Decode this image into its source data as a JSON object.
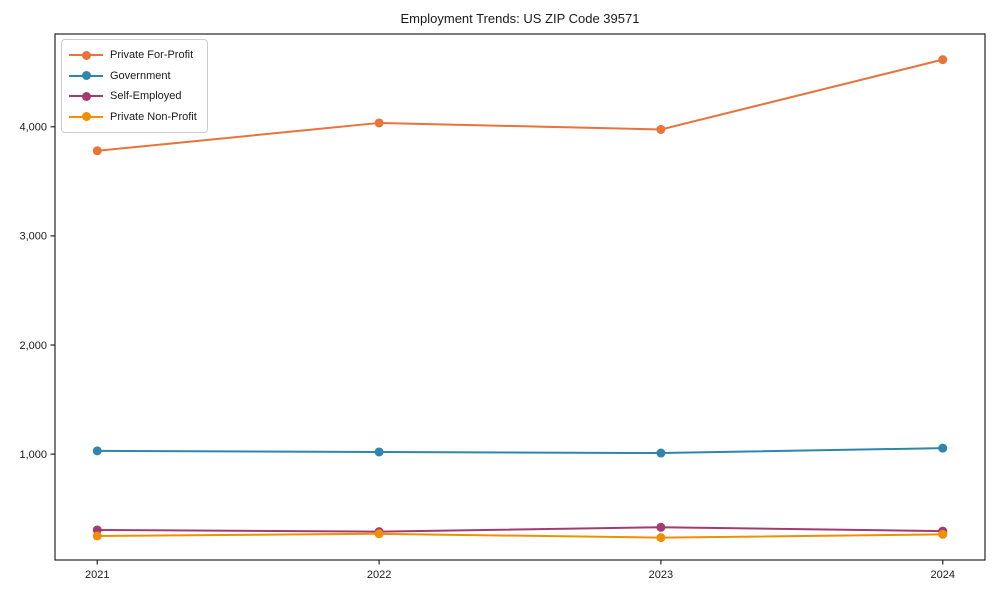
{
  "chart_data": {
    "type": "line",
    "title": "Employment Trends: US ZIP Code 39571",
    "xlabel": "",
    "ylabel": "",
    "categories": [
      2021,
      2022,
      2023,
      2024
    ],
    "series": [
      {
        "name": "Private For-Profit",
        "color": "#E8743B",
        "values": [
          3780,
          4035,
          3975,
          4615
        ]
      },
      {
        "name": "Government",
        "color": "#2E86AB",
        "values": [
          1030,
          1020,
          1010,
          1055
        ]
      },
      {
        "name": "Self-Employed",
        "color": "#A23B72",
        "values": [
          305,
          290,
          330,
          295
        ]
      },
      {
        "name": "Private Non-Profit",
        "color": "#F18F01",
        "values": [
          250,
          270,
          235,
          265
        ]
      }
    ],
    "x_ticks": [
      {
        "value": 2021,
        "label": "2021"
      },
      {
        "value": 2022,
        "label": "2022"
      },
      {
        "value": 2023,
        "label": "2023"
      },
      {
        "value": 2024,
        "label": "2024"
      }
    ],
    "y_ticks": [
      {
        "value": 1000,
        "label": "1,000"
      },
      {
        "value": 2000,
        "label": "2,000"
      },
      {
        "value": 3000,
        "label": "3,000"
      },
      {
        "value": 4000,
        "label": "4,000"
      }
    ],
    "xlim": [
      2020.85,
      2024.15
    ],
    "ylim": [
      30,
      4850
    ],
    "grid": false,
    "legend_position": "upper-left",
    "marker": "circle",
    "line_width": 2,
    "marker_radius": 4.5,
    "axis_color": "#262626",
    "text_color": "#1a1a1a",
    "background": "#ffffff"
  }
}
